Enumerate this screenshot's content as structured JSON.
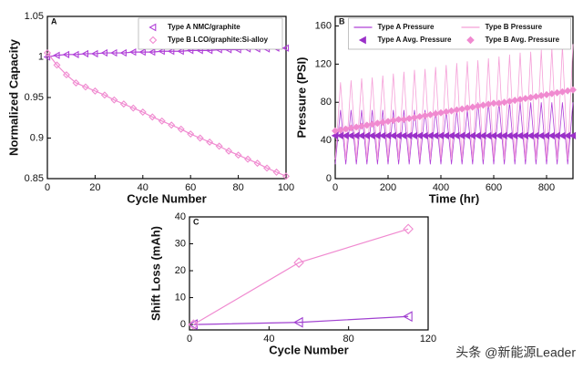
{
  "watermark": "头条 @新能源Leader",
  "chart_data": [
    {
      "type": "line",
      "panel_label": "A",
      "x_label": "Cycle Number",
      "y_label": "Normalized Capacity",
      "x": [
        0,
        4,
        8,
        12,
        16,
        20,
        24,
        28,
        32,
        36,
        40,
        44,
        48,
        52,
        56,
        60,
        64,
        68,
        72,
        76,
        80,
        84,
        88,
        92,
        96,
        100
      ],
      "xlim": [
        0,
        100
      ],
      "xticks": [
        0,
        20,
        40,
        60,
        80,
        100
      ],
      "ylim": [
        0.85,
        1.05
      ],
      "yticks": [
        0.85,
        0.9,
        0.95,
        1,
        1.05
      ],
      "legend_columns": 1,
      "series": [
        {
          "name": "Type A NMC/graphite",
          "color": "#b040d8",
          "marker": "triangle-left",
          "filled": false,
          "values": [
            1.0,
            1.002,
            1.003,
            1.003,
            1.004,
            1.004,
            1.005,
            1.005,
            1.005,
            1.006,
            1.006,
            1.006,
            1.007,
            1.007,
            1.007,
            1.008,
            1.008,
            1.008,
            1.009,
            1.009,
            1.009,
            1.01,
            1.01,
            1.01,
            1.011,
            1.011
          ]
        },
        {
          "name": "Type B LCO/graphite:Si-alloy",
          "color": "#f08ad0",
          "marker": "diamond",
          "filled": false,
          "values": [
            1.005,
            0.99,
            0.978,
            0.968,
            0.963,
            0.958,
            0.953,
            0.947,
            0.942,
            0.937,
            0.932,
            0.926,
            0.921,
            0.916,
            0.911,
            0.905,
            0.9,
            0.895,
            0.89,
            0.884,
            0.879,
            0.874,
            0.869,
            0.863,
            0.858,
            0.853
          ]
        }
      ]
    },
    {
      "type": "line",
      "panel_label": "B",
      "x_label": "Time (hr)",
      "y_label": "Pressure (PSI)",
      "x": [
        0,
        20,
        40,
        60,
        80,
        100,
        120,
        140,
        160,
        180,
        200,
        220,
        240,
        260,
        280,
        300,
        320,
        340,
        360,
        380,
        400,
        420,
        440,
        460,
        480,
        500,
        520,
        540,
        560,
        580,
        600,
        620,
        640,
        660,
        680,
        700,
        720,
        740,
        760,
        780,
        800,
        820,
        840,
        860,
        880,
        900
      ],
      "xlim": [
        0,
        900
      ],
      "xticks": [
        0,
        200,
        400,
        600,
        800
      ],
      "ylim": [
        0,
        170
      ],
      "yticks": [
        0,
        40,
        80,
        120,
        160
      ],
      "legend_columns": 2,
      "series": [
        {
          "name": "Type A Pressure",
          "color": "#b040d8",
          "values": [
            15,
            72,
            15,
            72,
            15,
            72,
            15,
            72,
            15,
            72,
            15,
            72,
            15,
            72,
            15,
            72,
            15,
            72,
            15,
            72,
            15,
            72,
            15,
            72,
            15,
            72,
            15,
            80,
            15,
            80,
            15,
            80,
            15,
            80,
            15,
            80,
            15,
            80,
            15,
            80,
            15,
            80,
            15,
            80,
            15,
            80
          ]
        },
        {
          "name": "Type B Pressure",
          "color": "#f5a0d8",
          "values": [
            20,
            101,
            20,
            103,
            20,
            105,
            20,
            106,
            20,
            108,
            20,
            110,
            20,
            112,
            20,
            114,
            20,
            115,
            20,
            117,
            20,
            119,
            20,
            121,
            20,
            123,
            20,
            124,
            20,
            126,
            20,
            128,
            20,
            130,
            20,
            132,
            20,
            133,
            20,
            135,
            20,
            137,
            20,
            139,
            20,
            141
          ]
        },
        {
          "name": "Type A Avg. Pressure",
          "color": "#9a30c8",
          "marker": "triangle-left",
          "filled": true,
          "values": [
            45,
            45,
            45,
            45,
            45,
            45,
            45,
            45,
            45,
            45,
            45,
            45,
            45,
            45,
            45,
            45,
            45,
            45,
            45,
            45,
            45,
            45,
            45,
            45,
            45,
            45,
            45,
            45,
            45,
            45,
            45,
            45,
            45,
            45,
            45,
            45,
            45,
            45,
            45,
            45,
            45,
            45,
            45,
            45,
            45,
            45
          ]
        },
        {
          "name": "Type B Avg. Pressure",
          "color": "#f08ad0",
          "marker": "diamond",
          "filled": true,
          "values": [
            50,
            51,
            52,
            53,
            54,
            55,
            56,
            57,
            58,
            59,
            60,
            61,
            62,
            62,
            63,
            64,
            65,
            66,
            67,
            68,
            69,
            70,
            71,
            72,
            73,
            74,
            75,
            76,
            77,
            78,
            79,
            79,
            80,
            81,
            82,
            83,
            84,
            85,
            86,
            87,
            88,
            89,
            90,
            91,
            92,
            93
          ]
        }
      ]
    },
    {
      "type": "line",
      "panel_label": "C",
      "x_label": "Cycle Number",
      "y_label": "Shift Loss (mAh)",
      "x": [
        2,
        55,
        110
      ],
      "xlim": [
        0,
        120
      ],
      "xticks": [
        0,
        40,
        80,
        120
      ],
      "ylim": [
        -2,
        40
      ],
      "yticks": [
        0,
        10,
        20,
        30,
        40
      ],
      "series": [
        {
          "name": null,
          "color": "#a040d0",
          "marker": "triangle-left",
          "filled": false,
          "values": [
            0,
            0.8,
            3
          ]
        },
        {
          "name": null,
          "color": "#f08ad0",
          "marker": "diamond",
          "filled": false,
          "values": [
            0,
            23,
            35.5
          ]
        }
      ]
    }
  ]
}
